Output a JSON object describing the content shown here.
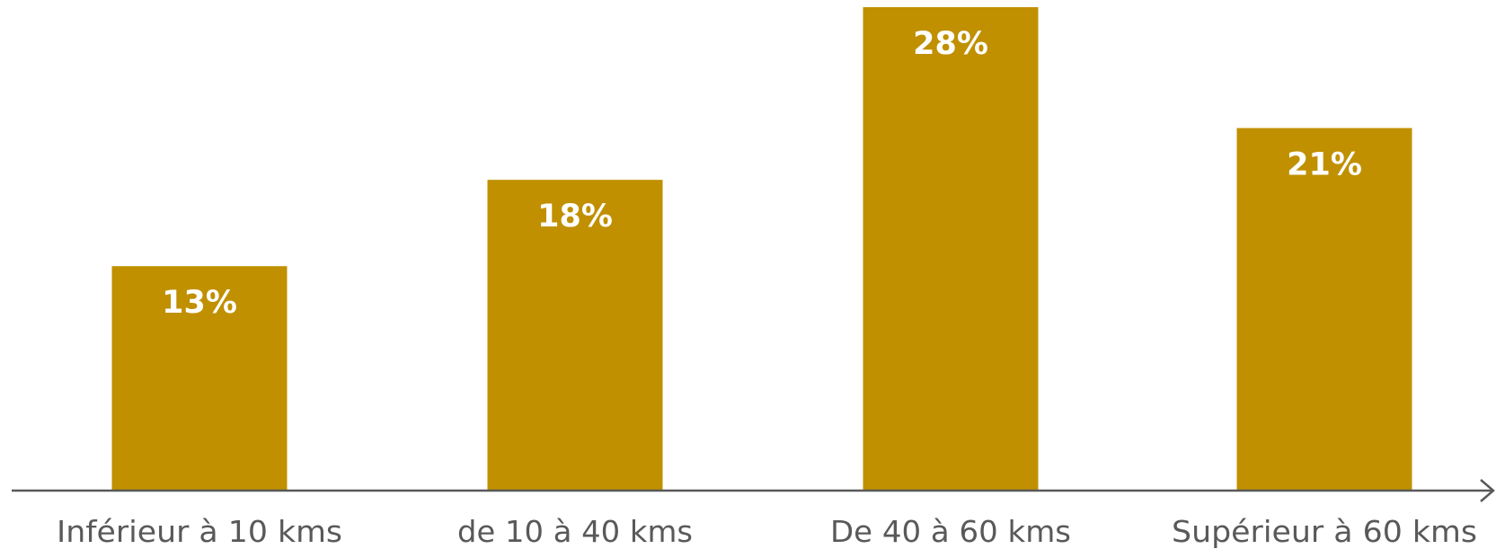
{
  "chart_data": {
    "type": "bar",
    "categories": [
      "Inférieur à 10 kms",
      "de 10 à 40 kms",
      "De 40 à 60 kms",
      "Supérieur à 60 kms"
    ],
    "values": [
      13,
      18,
      28,
      21
    ],
    "value_labels": [
      "13%",
      "18%",
      "28%",
      "21%"
    ],
    "title": "",
    "xlabel": "",
    "ylabel": "",
    "ylim": [
      0,
      28
    ],
    "grid": false,
    "legend": "none",
    "colors": {
      "bar": "#C09000",
      "axis": "#595959",
      "value_text": "#ffffff",
      "category_text": "#595959"
    }
  }
}
